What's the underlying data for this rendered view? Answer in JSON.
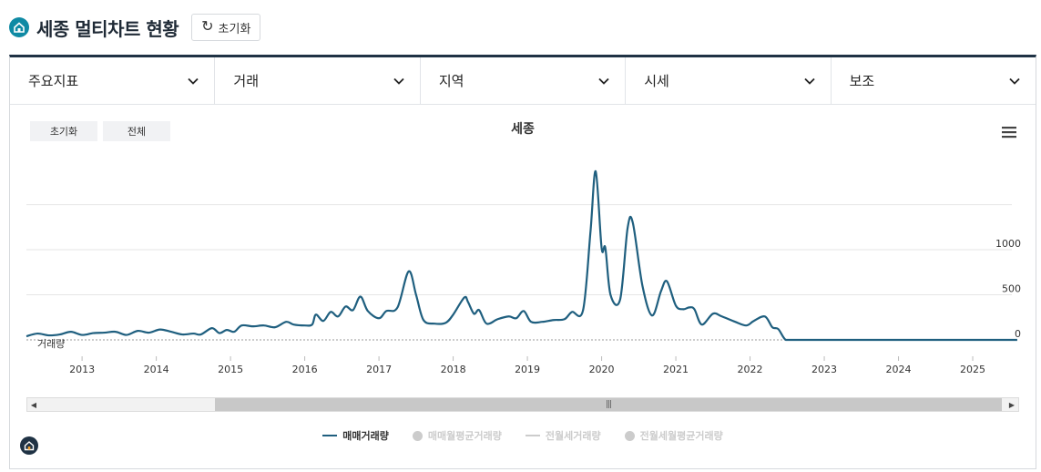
{
  "header": {
    "title": "세종 멀티차트 현황",
    "reset_label": "초기화"
  },
  "filters": [
    {
      "label": "주요지표"
    },
    {
      "label": "거래"
    },
    {
      "label": "지역"
    },
    {
      "label": "시세"
    },
    {
      "label": "보조"
    }
  ],
  "chart_controls": {
    "reset_label": "초기화",
    "all_label": "전체"
  },
  "colors": {
    "series": "#1f5f7f",
    "muted": "#cccccc",
    "accent": "#0f8aa4",
    "navy": "#1f3244"
  },
  "chart_data": {
    "type": "line",
    "title": "세종",
    "y_axis_label": "거래량",
    "ylim": [
      0,
      1900
    ],
    "yticks": [
      0,
      500,
      1000
    ],
    "xticks": [
      "2013",
      "2014",
      "2015",
      "2016",
      "2017",
      "2018",
      "2019",
      "2020",
      "2021",
      "2022",
      "2023",
      "2024",
      "2025"
    ],
    "x_range": [
      2012.25,
      2025.65
    ],
    "grid": "horizontal",
    "legend_position": "bottom",
    "series": [
      {
        "name": "매매거래량",
        "active": true,
        "points": [
          [
            2012.25,
            40
          ],
          [
            2012.4,
            70
          ],
          [
            2012.55,
            50
          ],
          [
            2012.7,
            60
          ],
          [
            2012.85,
            90
          ],
          [
            2013.0,
            55
          ],
          [
            2013.15,
            75
          ],
          [
            2013.3,
            80
          ],
          [
            2013.45,
            90
          ],
          [
            2013.6,
            55
          ],
          [
            2013.75,
            100
          ],
          [
            2013.9,
            80
          ],
          [
            2014.05,
            115
          ],
          [
            2014.2,
            90
          ],
          [
            2014.35,
            60
          ],
          [
            2014.5,
            70
          ],
          [
            2014.6,
            60
          ],
          [
            2014.75,
            130
          ],
          [
            2014.85,
            75
          ],
          [
            2014.95,
            110
          ],
          [
            2015.05,
            90
          ],
          [
            2015.15,
            160
          ],
          [
            2015.3,
            150
          ],
          [
            2015.45,
            160
          ],
          [
            2015.6,
            140
          ],
          [
            2015.75,
            200
          ],
          [
            2015.85,
            170
          ],
          [
            2016.0,
            160
          ],
          [
            2016.1,
            170
          ],
          [
            2016.15,
            280
          ],
          [
            2016.25,
            210
          ],
          [
            2016.35,
            310
          ],
          [
            2016.45,
            260
          ],
          [
            2016.55,
            370
          ],
          [
            2016.65,
            330
          ],
          [
            2016.75,
            480
          ],
          [
            2016.85,
            320
          ],
          [
            2017.0,
            240
          ],
          [
            2017.1,
            320
          ],
          [
            2017.25,
            360
          ],
          [
            2017.4,
            760
          ],
          [
            2017.5,
            500
          ],
          [
            2017.6,
            220
          ],
          [
            2017.75,
            180
          ],
          [
            2017.9,
            190
          ],
          [
            2018.0,
            280
          ],
          [
            2018.15,
            470
          ],
          [
            2018.2,
            420
          ],
          [
            2018.28,
            290
          ],
          [
            2018.35,
            330
          ],
          [
            2018.45,
            180
          ],
          [
            2018.6,
            230
          ],
          [
            2018.75,
            260
          ],
          [
            2018.85,
            240
          ],
          [
            2018.95,
            320
          ],
          [
            2019.05,
            200
          ],
          [
            2019.2,
            200
          ],
          [
            2019.35,
            220
          ],
          [
            2019.5,
            230
          ],
          [
            2019.6,
            310
          ],
          [
            2019.75,
            330
          ],
          [
            2019.85,
            1200
          ],
          [
            2019.92,
            1870
          ],
          [
            2020.0,
            1020
          ],
          [
            2020.05,
            1020
          ],
          [
            2020.12,
            500
          ],
          [
            2020.25,
            450
          ],
          [
            2020.35,
            1240
          ],
          [
            2020.42,
            1300
          ],
          [
            2020.55,
            600
          ],
          [
            2020.68,
            270
          ],
          [
            2020.8,
            540
          ],
          [
            2020.88,
            650
          ],
          [
            2021.0,
            380
          ],
          [
            2021.1,
            340
          ],
          [
            2021.18,
            360
          ],
          [
            2021.25,
            340
          ],
          [
            2021.35,
            170
          ],
          [
            2021.5,
            290
          ],
          [
            2021.62,
            260
          ],
          [
            2021.8,
            200
          ],
          [
            2021.95,
            160
          ],
          [
            2022.05,
            210
          ],
          [
            2022.2,
            260
          ],
          [
            2022.3,
            140
          ],
          [
            2022.38,
            120
          ],
          [
            2022.48,
            0
          ],
          [
            2022.6,
            0
          ],
          [
            2023.0,
            0
          ],
          [
            2024.0,
            0
          ],
          [
            2025.0,
            0
          ],
          [
            2025.6,
            0
          ]
        ]
      },
      {
        "name": "매매월평균거래량",
        "active": false
      },
      {
        "name": "전월세거래량",
        "active": false
      },
      {
        "name": "전월세월평균거래량",
        "active": false
      }
    ]
  }
}
